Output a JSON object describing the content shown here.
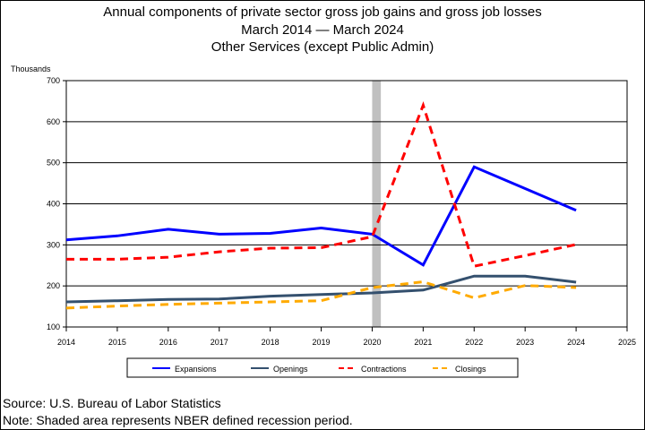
{
  "title_lines": [
    "Annual components of private sector gross job gains and gross job losses",
    "March 2014 — March 2024",
    "Other Services (except Public Admin)"
  ],
  "footer": {
    "source": "Source: U.S. Bureau of Labor Statistics",
    "note": "Note: Shaded area represents NBER defined recession period."
  },
  "chart_data": {
    "type": "line",
    "title": "Annual components of private sector gross job gains and gross job losses",
    "subtitle": "March 2014 — March 2024 / Other Services (except Public Admin)",
    "ylabel": "Thousands",
    "xlabel": "",
    "ylim": [
      100,
      700
    ],
    "yticks": [
      100,
      200,
      300,
      400,
      500,
      600,
      700
    ],
    "xlim": [
      2014,
      2025
    ],
    "xticks": [
      2014,
      2015,
      2016,
      2017,
      2018,
      2019,
      2020,
      2021,
      2022,
      2023,
      2024,
      2025
    ],
    "grid": "horizontal",
    "legend_position": "bottom",
    "recession_shade": {
      "from": 2020.0,
      "to": 2020.17,
      "color": "#c0c0c0"
    },
    "series": [
      {
        "name": "Expansions",
        "color": "#0000ff",
        "dash": "solid",
        "width": 3,
        "x": [
          2014,
          2015,
          2016,
          2017,
          2018,
          2019,
          2020,
          2021,
          2022,
          2023,
          2024
        ],
        "values": [
          312,
          322,
          338,
          326,
          328,
          341,
          326,
          251,
          490,
          437,
          384
        ]
      },
      {
        "name": "Openings",
        "color": "#34506e",
        "dash": "solid",
        "width": 3,
        "x": [
          2014,
          2015,
          2016,
          2017,
          2018,
          2019,
          2020,
          2021,
          2022,
          2023,
          2024
        ],
        "values": [
          161,
          164,
          167,
          168,
          175,
          179,
          183,
          190,
          224,
          224,
          209
        ]
      },
      {
        "name": "Contractions",
        "color": "#ff0000",
        "dash": "dashed",
        "width": 3,
        "x": [
          2014,
          2015,
          2016,
          2017,
          2018,
          2019,
          2020,
          2021,
          2022,
          2023,
          2024
        ],
        "values": [
          265,
          265,
          270,
          283,
          292,
          293,
          320,
          640,
          248,
          274,
          301
        ]
      },
      {
        "name": "Closings",
        "color": "#ffaa00",
        "dash": "dashed",
        "width": 3,
        "x": [
          2014,
          2015,
          2016,
          2017,
          2018,
          2019,
          2020,
          2021,
          2022,
          2023,
          2024
        ],
        "values": [
          146,
          151,
          155,
          158,
          161,
          164,
          196,
          210,
          171,
          201,
          196
        ]
      }
    ]
  }
}
